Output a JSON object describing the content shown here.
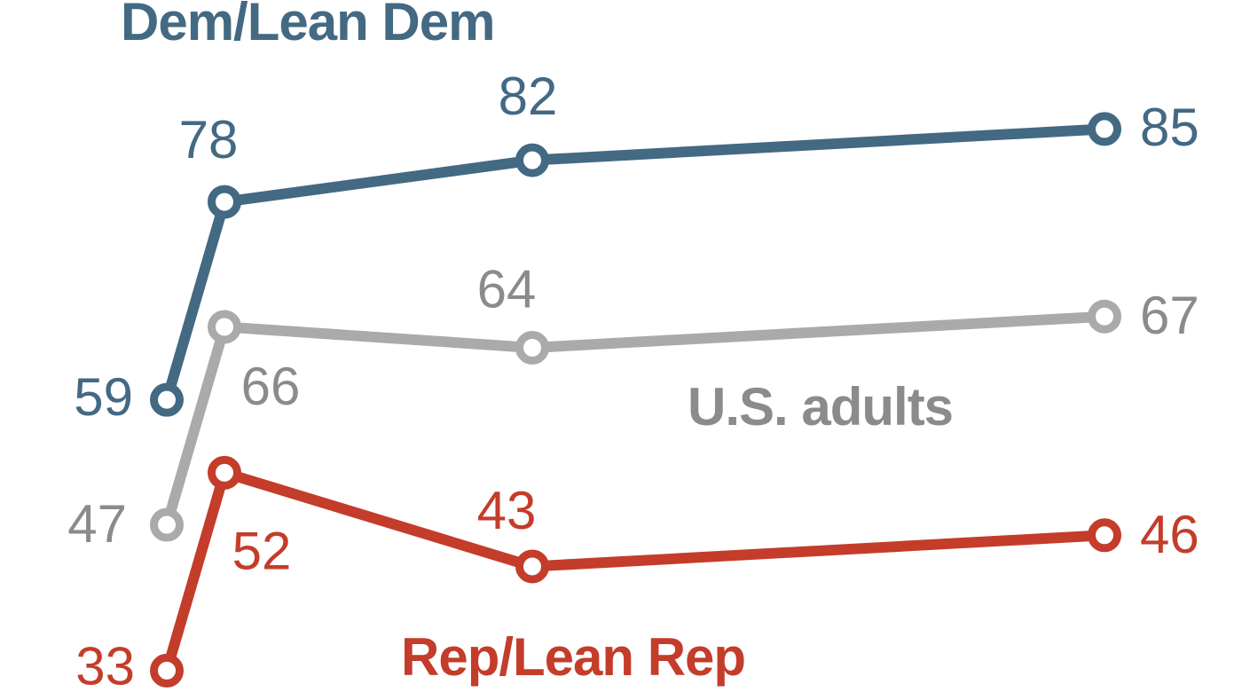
{
  "chart_data": {
    "type": "line",
    "title": "",
    "xlabel": "",
    "ylabel": "",
    "x_tick_labels": [],
    "num_points_per_series": 4,
    "value_labels_shown": true,
    "marker_style": "open-circle",
    "background_color": "#ffffff",
    "legend_position": "inline-next-to-lines",
    "series": [
      {
        "name": "Dem/Lean Dem",
        "color": "#436983",
        "label_color": "#436983",
        "values": [
          59,
          78,
          82,
          85
        ]
      },
      {
        "name": "U.S. adults",
        "color": "#a9aaac",
        "label_color": "#8a8b8d",
        "values": [
          47,
          66,
          64,
          67
        ]
      },
      {
        "name": "Rep/Lean Rep",
        "color": "#c43c2a",
        "label_color": "#c43c2a",
        "values": [
          33,
          52,
          43,
          46
        ]
      }
    ]
  }
}
